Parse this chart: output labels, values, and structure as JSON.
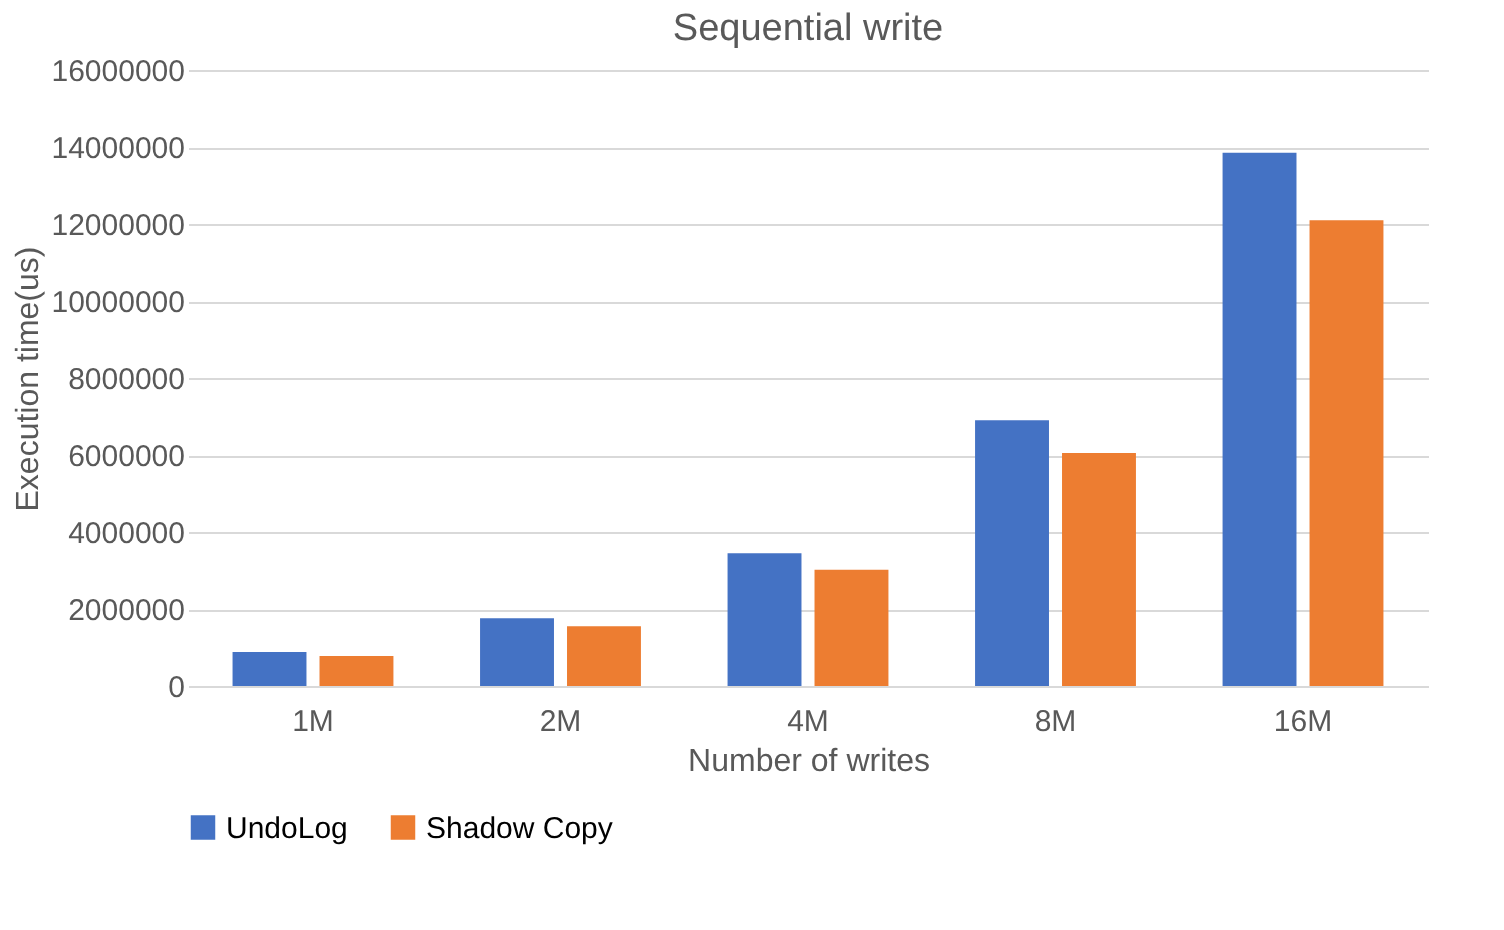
{
  "chart_data": {
    "type": "bar",
    "title": "Sequential write",
    "xlabel": "Number of writes",
    "ylabel": "Execution time(us)",
    "categories": [
      "1M",
      "2M",
      "4M",
      "8M",
      "16M"
    ],
    "series": [
      {
        "name": "UndoLog",
        "color": "#4472c4",
        "values": [
          880000,
          1760000,
          3450000,
          6900000,
          13850000
        ]
      },
      {
        "name": "Shadow Copy",
        "color": "#ed7d31",
        "values": [
          780000,
          1550000,
          3020000,
          6050000,
          12100000
        ]
      }
    ],
    "ylim": [
      0,
      16000000
    ],
    "yticks": [
      0,
      2000000,
      4000000,
      6000000,
      8000000,
      10000000,
      12000000,
      14000000,
      16000000
    ],
    "grid": "y",
    "legend": "bottom"
  }
}
